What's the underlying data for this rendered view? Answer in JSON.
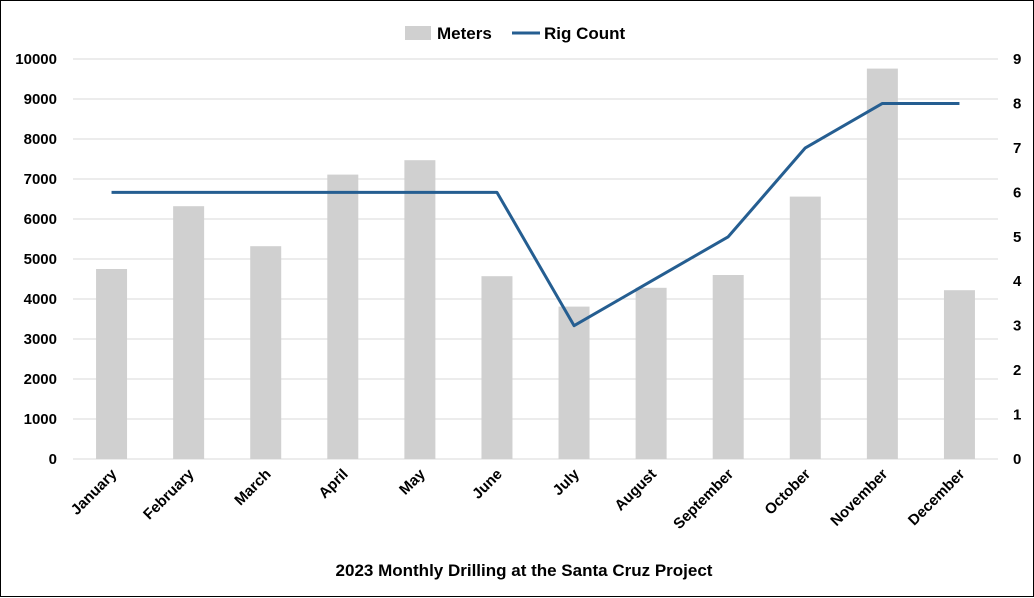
{
  "chart_data": {
    "type": "bar+line",
    "title": "2023 Monthly Drilling at the Santa Cruz Project",
    "categories": [
      "January",
      "February",
      "March",
      "April",
      "May",
      "June",
      "July",
      "August",
      "September",
      "October",
      "November",
      "December"
    ],
    "series": [
      {
        "name": "Meters",
        "type": "bar",
        "axis": "left",
        "color": "#d0d0d0",
        "values": [
          4750,
          6320,
          5320,
          7110,
          7470,
          4570,
          3810,
          4280,
          4600,
          6560,
          9760,
          4220
        ]
      },
      {
        "name": "Rig Count",
        "type": "line",
        "axis": "right",
        "color": "#255e91",
        "values": [
          6,
          6,
          6,
          6,
          6,
          6,
          3,
          4,
          5,
          7,
          8,
          8
        ]
      }
    ],
    "y_left": {
      "min": 0,
      "max": 10000,
      "ticks": [
        "0",
        "1000",
        "2000",
        "3000",
        "4000",
        "5000",
        "6000",
        "7000",
        "8000",
        "9000",
        "10000"
      ]
    },
    "y_right": {
      "min": 0,
      "max": 9,
      "ticks": [
        "0",
        "1",
        "2",
        "3",
        "4",
        "5",
        "6",
        "7",
        "8",
        "9"
      ]
    },
    "grid": true,
    "legend_position": "top"
  }
}
